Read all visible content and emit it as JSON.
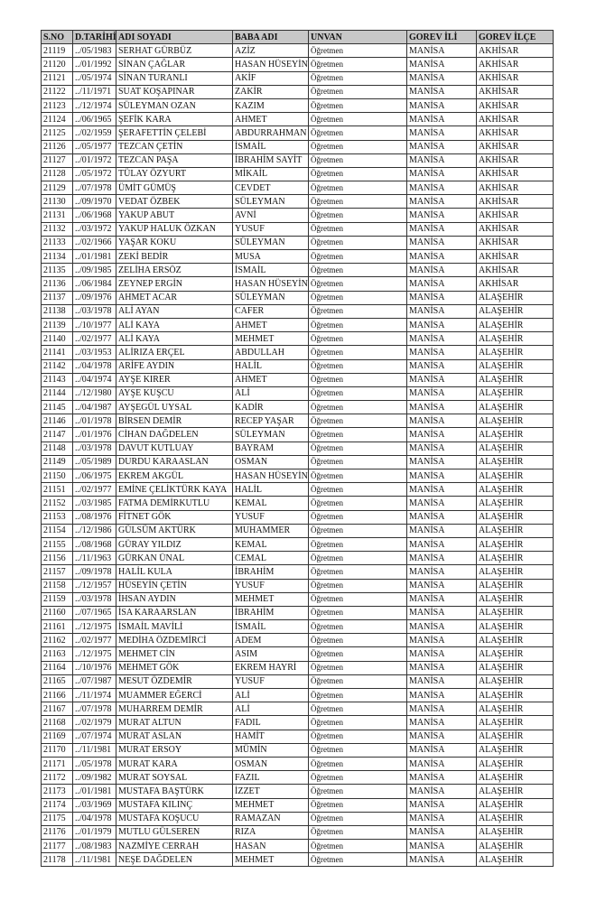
{
  "table": {
    "header": [
      "S.NO",
      "D.TARİHİ",
      "ADI SOYADI",
      "BABA ADI",
      "UNVAN",
      "GOREV İLİ",
      "GOREV İLÇE"
    ],
    "rows": [
      [
        "21119",
        "../05/1983",
        "SERHAT GÜRBÜZ",
        "AZİZ",
        "Öğretmen",
        "MANİSA",
        "AKHİSAR"
      ],
      [
        "21120",
        "../01/1992",
        "SİNAN ÇAĞLAR",
        "HASAN HÜSEYİN",
        "Öğretmen",
        "MANİSA",
        "AKHİSAR"
      ],
      [
        "21121",
        "../05/1974",
        "SİNAN TURANLI",
        "AKİF",
        "Öğretmen",
        "MANİSA",
        "AKHİSAR"
      ],
      [
        "21122",
        "../11/1971",
        "SUAT KOŞAPINAR",
        "ZAKİR",
        "Öğretmen",
        "MANİSA",
        "AKHİSAR"
      ],
      [
        "21123",
        "../12/1974",
        "SÜLEYMAN OZAN",
        "KAZIM",
        "Öğretmen",
        "MANİSA",
        "AKHİSAR"
      ],
      [
        "21124",
        "../06/1965",
        "ŞEFİK KARA",
        "AHMET",
        "Öğretmen",
        "MANİSA",
        "AKHİSAR"
      ],
      [
        "21125",
        "../02/1959",
        "ŞERAFETTİN ÇELEBİ",
        "ABDURRAHMAN",
        "Öğretmen",
        "MANİSA",
        "AKHİSAR"
      ],
      [
        "21126",
        "../05/1977",
        "TEZCAN ÇETİN",
        "İSMAİL",
        "Öğretmen",
        "MANİSA",
        "AKHİSAR"
      ],
      [
        "21127",
        "../01/1972",
        "TEZCAN PAŞA",
        "İBRAHİM SAYİT",
        "Öğretmen",
        "MANİSA",
        "AKHİSAR"
      ],
      [
        "21128",
        "../05/1972",
        "TÜLAY ÖZYURT",
        "MİKAİL",
        "Öğretmen",
        "MANİSA",
        "AKHİSAR"
      ],
      [
        "21129",
        "../07/1978",
        "ÜMİT GÜMÜŞ",
        "CEVDET",
        "Öğretmen",
        "MANİSA",
        "AKHİSAR"
      ],
      [
        "21130",
        "../09/1970",
        "VEDAT ÖZBEK",
        "SÜLEYMAN",
        "Öğretmen",
        "MANİSA",
        "AKHİSAR"
      ],
      [
        "21131",
        "../06/1968",
        "YAKUP ABUT",
        "AVNİ",
        "Öğretmen",
        "MANİSA",
        "AKHİSAR"
      ],
      [
        "21132",
        "../03/1972",
        "YAKUP HALUK ÖZKAN",
        "YUSUF",
        "Öğretmen",
        "MANİSA",
        "AKHİSAR"
      ],
      [
        "21133",
        "../02/1966",
        "YAŞAR KOKU",
        "SÜLEYMAN",
        "Öğretmen",
        "MANİSA",
        "AKHİSAR"
      ],
      [
        "21134",
        "../01/1981",
        "ZEKİ BEDİR",
        "MUSA",
        "Öğretmen",
        "MANİSA",
        "AKHİSAR"
      ],
      [
        "21135",
        "../09/1985",
        "ZELİHA ERSÖZ",
        "İSMAİL",
        "Öğretmen",
        "MANİSA",
        "AKHİSAR"
      ],
      [
        "21136",
        "../06/1984",
        "ZEYNEP ERGİN",
        "HASAN HÜSEYİN",
        "Öğretmen",
        "MANİSA",
        "AKHİSAR"
      ],
      [
        "21137",
        "../09/1976",
        "AHMET ACAR",
        "SÜLEYMAN",
        "Öğretmen",
        "MANİSA",
        "ALAŞEHİR"
      ],
      [
        "21138",
        "../03/1978",
        "ALİ AYAN",
        "CAFER",
        "Öğretmen",
        "MANİSA",
        "ALAŞEHİR"
      ],
      [
        "21139",
        "../10/1977",
        "ALİ KAYA",
        "AHMET",
        "Öğretmen",
        "MANİSA",
        "ALAŞEHİR"
      ],
      [
        "21140",
        "../02/1977",
        "ALİ KAYA",
        "MEHMET",
        "Öğretmen",
        "MANİSA",
        "ALAŞEHİR"
      ],
      [
        "21141",
        "../03/1953",
        "ALİRIZA ERÇEL",
        "ABDULLAH",
        "Öğretmen",
        "MANİSA",
        "ALAŞEHİR"
      ],
      [
        "21142",
        "../04/1978",
        "ARİFE AYDIN",
        "HALİL",
        "Öğretmen",
        "MANİSA",
        "ALAŞEHİR"
      ],
      [
        "21143",
        "../04/1974",
        "AYŞE KIRER",
        "AHMET",
        "Öğretmen",
        "MANİSA",
        "ALAŞEHİR"
      ],
      [
        "21144",
        "../12/1980",
        "AYŞE KUŞCU",
        "ALİ",
        "Öğretmen",
        "MANİSA",
        "ALAŞEHİR"
      ],
      [
        "21145",
        "../04/1987",
        "AYŞEGÜL UYSAL",
        "KADİR",
        "Öğretmen",
        "MANİSA",
        "ALAŞEHİR"
      ],
      [
        "21146",
        "../01/1978",
        "BİRSEN DEMİR",
        "RECEP YAŞAR",
        "Öğretmen",
        "MANİSA",
        "ALAŞEHİR"
      ],
      [
        "21147",
        "../01/1976",
        "CİHAN DAĞDELEN",
        "SÜLEYMAN",
        "Öğretmen",
        "MANİSA",
        "ALAŞEHİR"
      ],
      [
        "21148",
        "../03/1978",
        "DAVUT KUTLUAY",
        "BAYRAM",
        "Öğretmen",
        "MANİSA",
        "ALAŞEHİR"
      ],
      [
        "21149",
        "../05/1989",
        "DURDU KARAASLAN",
        "OSMAN",
        "Öğretmen",
        "MANİSA",
        "ALAŞEHİR"
      ],
      [
        "21150",
        "../06/1975",
        "EKREM AKGÜL",
        "HASAN HÜSEYİN",
        "Öğretmen",
        "MANİSA",
        "ALAŞEHİR"
      ],
      [
        "21151",
        "../02/1977",
        "EMİNE ÇELİKTÜRK KAYA",
        "HALİL",
        "Öğretmen",
        "MANİSA",
        "ALAŞEHİR"
      ],
      [
        "21152",
        "../03/1985",
        "FATMA DEMİRKUTLU",
        "KEMAL",
        "Öğretmen",
        "MANİSA",
        "ALAŞEHİR"
      ],
      [
        "21153",
        "../08/1976",
        "FİTNET GÖK",
        "YUSUF",
        "Öğretmen",
        "MANİSA",
        "ALAŞEHİR"
      ],
      [
        "21154",
        "../12/1986",
        "GÜLSÜM AKTÜRK",
        "MUHAMMER",
        "Öğretmen",
        "MANİSA",
        "ALAŞEHİR"
      ],
      [
        "21155",
        "../08/1968",
        "GÜRAY YILDIZ",
        "KEMAL",
        "Öğretmen",
        "MANİSA",
        "ALAŞEHİR"
      ],
      [
        "21156",
        "../11/1963",
        "GÜRKAN ÜNAL",
        "CEMAL",
        "Öğretmen",
        "MANİSA",
        "ALAŞEHİR"
      ],
      [
        "21157",
        "../09/1978",
        "HALİL KULA",
        "İBRAHİM",
        "Öğretmen",
        "MANİSA",
        "ALAŞEHİR"
      ],
      [
        "21158",
        "../12/1957",
        "HÜSEYİN ÇETİN",
        "YUSUF",
        "Öğretmen",
        "MANİSA",
        "ALAŞEHİR"
      ],
      [
        "21159",
        "../03/1978",
        "İHSAN AYDIN",
        "MEHMET",
        "Öğretmen",
        "MANİSA",
        "ALAŞEHİR"
      ],
      [
        "21160",
        "../07/1965",
        "İSA KARAARSLAN",
        "İBRAHİM",
        "Öğretmen",
        "MANİSA",
        "ALAŞEHİR"
      ],
      [
        "21161",
        "../12/1975",
        "İSMAİL MAVİLİ",
        "İSMAİL",
        "Öğretmen",
        "MANİSA",
        "ALAŞEHİR"
      ],
      [
        "21162",
        "../02/1977",
        "MEDİHA ÖZDEMİRCİ",
        "ADEM",
        "Öğretmen",
        "MANİSA",
        "ALAŞEHİR"
      ],
      [
        "21163",
        "../12/1975",
        "MEHMET CİN",
        "ASIM",
        "Öğretmen",
        "MANİSA",
        "ALAŞEHİR"
      ],
      [
        "21164",
        "../10/1976",
        "MEHMET GÖK",
        "EKREM HAYRİ",
        "Öğretmen",
        "MANİSA",
        "ALAŞEHİR"
      ],
      [
        "21165",
        "../07/1987",
        "MESUT ÖZDEMİR",
        "YUSUF",
        "Öğretmen",
        "MANİSA",
        "ALAŞEHİR"
      ],
      [
        "21166",
        "../11/1974",
        "MUAMMER EĞERCİ",
        "ALİ",
        "Öğretmen",
        "MANİSA",
        "ALAŞEHİR"
      ],
      [
        "21167",
        "../07/1978",
        "MUHARREM DEMİR",
        "ALİ",
        "Öğretmen",
        "MANİSA",
        "ALAŞEHİR"
      ],
      [
        "21168",
        "../02/1979",
        "MURAT ALTUN",
        "FADIL",
        "Öğretmen",
        "MANİSA",
        "ALAŞEHİR"
      ],
      [
        "21169",
        "../07/1974",
        "MURAT ASLAN",
        "HAMİT",
        "Öğretmen",
        "MANİSA",
        "ALAŞEHİR"
      ],
      [
        "21170",
        "../11/1981",
        "MURAT ERSOY",
        "MÜMİN",
        "Öğretmen",
        "MANİSA",
        "ALAŞEHİR"
      ],
      [
        "21171",
        "../05/1978",
        "MURAT KARA",
        "OSMAN",
        "Öğretmen",
        "MANİSA",
        "ALAŞEHİR"
      ],
      [
        "21172",
        "../09/1982",
        "MURAT SOYSAL",
        "FAZIL",
        "Öğretmen",
        "MANİSA",
        "ALAŞEHİR"
      ],
      [
        "21173",
        "../01/1981",
        "MUSTAFA BAŞTÜRK",
        "İZZET",
        "Öğretmen",
        "MANİSA",
        "ALAŞEHİR"
      ],
      [
        "21174",
        "../03/1969",
        "MUSTAFA KILINÇ",
        "MEHMET",
        "Öğretmen",
        "MANİSA",
        "ALAŞEHİR"
      ],
      [
        "21175",
        "../04/1978",
        "MUSTAFA KOŞUCU",
        "RAMAZAN",
        "Öğretmen",
        "MANİSA",
        "ALAŞEHİR"
      ],
      [
        "21176",
        "../01/1979",
        "MUTLU GÜLSEREN",
        "RIZA",
        "Öğretmen",
        "MANİSA",
        "ALAŞEHİR"
      ],
      [
        "21177",
        "../08/1983",
        "NAZMİYE CERRAH",
        "HASAN",
        "Öğretmen",
        "MANİSA",
        "ALAŞEHİR"
      ],
      [
        "21178",
        "../11/1981",
        "NEŞE DAĞDELEN",
        "MEHMET",
        "Öğretmen",
        "MANİSA",
        "ALAŞEHİR"
      ]
    ]
  }
}
